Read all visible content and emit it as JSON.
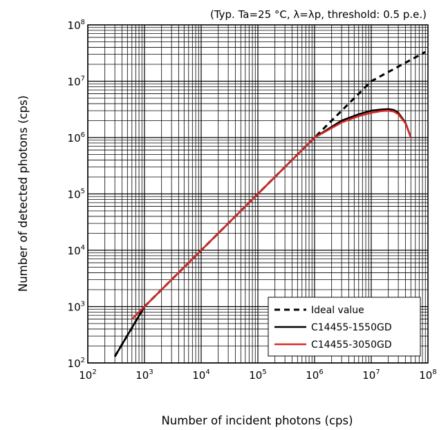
{
  "chart_data": {
    "type": "line",
    "note": "(Typ. Ta=25 °C, λ=λp, threshold: 0.5 p.e.)",
    "xlabel": "Number of incident photons (cps)",
    "ylabel": "Number of detected photons (cps)",
    "x_scale": "log",
    "y_scale": "log",
    "xlim": [
      100,
      100000000
    ],
    "ylim": [
      100,
      100000000
    ],
    "x_ticks": [
      {
        "base": "10",
        "exp": "2",
        "value": 100
      },
      {
        "base": "10",
        "exp": "3",
        "value": 1000
      },
      {
        "base": "10",
        "exp": "4",
        "value": 10000
      },
      {
        "base": "10",
        "exp": "5",
        "value": 100000
      },
      {
        "base": "10",
        "exp": "6",
        "value": 1000000
      },
      {
        "base": "10",
        "exp": "7",
        "value": 10000000
      },
      {
        "base": "10",
        "exp": "8",
        "value": 100000000
      }
    ],
    "y_ticks": [
      {
        "base": "10",
        "exp": "2",
        "value": 100
      },
      {
        "base": "10",
        "exp": "3",
        "value": 1000
      },
      {
        "base": "10",
        "exp": "4",
        "value": 10000
      },
      {
        "base": "10",
        "exp": "5",
        "value": 100000
      },
      {
        "base": "10",
        "exp": "6",
        "value": 1000000
      },
      {
        "base": "10",
        "exp": "7",
        "value": 10000000
      },
      {
        "base": "10",
        "exp": "8",
        "value": 100000000
      }
    ],
    "grid": true,
    "legend_position": "bottom-right",
    "series": [
      {
        "name": "Ideal value",
        "color": "#000000",
        "style": "dashed",
        "x": [
          300,
          1000,
          10000,
          100000,
          1000000,
          10000000,
          90000000
        ],
        "y": [
          130,
          1000,
          10000,
          100000,
          1000000,
          10000000,
          33000000
        ]
      },
      {
        "name": "C14455-1550GD",
        "color": "#000000",
        "style": "solid",
        "x": [
          300,
          1000,
          10000,
          100000,
          1000000,
          3000000,
          6000000,
          10000000,
          15000000,
          20000000,
          25000000,
          30000000,
          40000000,
          50000000
        ],
        "y": [
          130,
          1000,
          10000,
          100000,
          1000000,
          2000000,
          2600000,
          3000000,
          3150000,
          3200000,
          3100000,
          2750000,
          1850000,
          1000000
        ]
      },
      {
        "name": "C14455-3050GD",
        "color": "#d42a28",
        "style": "solid",
        "x": [
          600,
          1000,
          10000,
          100000,
          1000000,
          3000000,
          6000000,
          10000000,
          15000000,
          20000000,
          25000000,
          30000000,
          40000000,
          50000000
        ],
        "y": [
          600,
          1000,
          10000,
          100000,
          1000000,
          1850000,
          2400000,
          2750000,
          2950000,
          3000000,
          2900000,
          2600000,
          1800000,
          1000000
        ]
      }
    ]
  }
}
